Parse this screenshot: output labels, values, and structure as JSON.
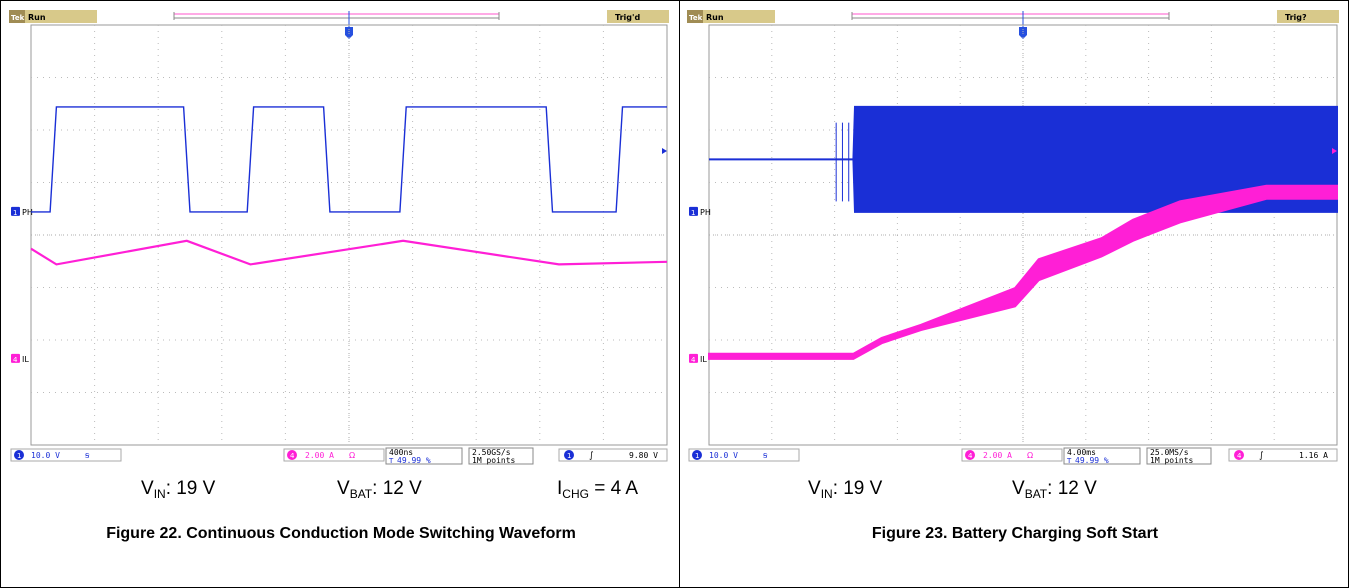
{
  "figures": [
    {
      "id": "fig22",
      "header": {
        "left": "Run",
        "right": "Trig'd"
      },
      "channels": [
        {
          "label": "PH",
          "color": "#1a2fd6"
        },
        {
          "label": "IL",
          "color": "#ff1fd6"
        }
      ],
      "status": {
        "ch1_scale": "10.0 V",
        "ch4_scale": "2.00 A",
        "ch4_suffix": "Ω",
        "timebase": "400ns",
        "trigger_pos": "49.99 %",
        "sample_rate": "2.50GS/s",
        "record_length": "1M points",
        "trigger_level": "9.80 V"
      },
      "conditions": {
        "vin": {
          "name": "V",
          "sub": "IN",
          "value": ": 19 V"
        },
        "vbat": {
          "name": "V",
          "sub": "BAT",
          "value": ": 12 V"
        },
        "ichg": {
          "name": "I",
          "sub": "CHG",
          "value": " = 4 A"
        }
      },
      "caption": "Figure 22. Continuous Conduction Mode Switching Waveform"
    },
    {
      "id": "fig23",
      "header": {
        "left": "Run",
        "right": "Trig?"
      },
      "channels": [
        {
          "label": "PH",
          "color": "#1a2fd6"
        },
        {
          "label": "IL",
          "color": "#ff1fd6"
        }
      ],
      "status": {
        "ch1_scale": "10.0 V",
        "ch4_scale": "2.00 A",
        "ch4_suffix": "Ω",
        "timebase": "4.00ms",
        "trigger_pos": "49.99 %",
        "sample_rate": "25.0MS/s",
        "record_length": "1M points",
        "trigger_level": "1.16 A"
      },
      "conditions": {
        "vin": {
          "name": "V",
          "sub": "IN",
          "value": ": 19 V"
        },
        "vbat": {
          "name": "V",
          "sub": "BAT",
          "value": ": 12 V"
        }
      },
      "caption": "Figure 23. Battery Charging Soft Start"
    }
  ],
  "chart_data": [
    {
      "type": "line",
      "title": "Figure 22. Continuous Conduction Mode Switching Waveform",
      "x_unit": "ns",
      "x_divisions": 10,
      "x_per_div": 400,
      "series": [
        {
          "name": "PH",
          "unit": "V",
          "x": [
            0,
            120,
            160,
            960,
            1000,
            1360,
            1400,
            1840,
            1880,
            2320,
            2360,
            3240,
            3280,
            3680,
            3720,
            4000
          ],
          "values": [
            0,
            0,
            20,
            20,
            0,
            0,
            20,
            20,
            0,
            0,
            20,
            20,
            0,
            0,
            20,
            20
          ]
        },
        {
          "name": "IL",
          "unit": "A",
          "x": [
            0,
            160,
            980,
            1380,
            2340,
            3320,
            4000
          ],
          "values": [
            4.2,
            3.6,
            4.5,
            3.6,
            4.5,
            3.6,
            3.7
          ]
        }
      ]
    },
    {
      "type": "area",
      "title": "Figure 23. Battery Charging Soft Start",
      "x_unit": "ms",
      "x_divisions": 10,
      "x_per_div": 4,
      "series": [
        {
          "name": "PH",
          "unit": "V",
          "note": "envelope",
          "x": [
            0,
            8.5,
            9.2,
            9.3,
            40
          ],
          "min": [
            10,
            10,
            10,
            0,
            0
          ],
          "max": [
            10,
            10,
            10,
            20,
            20
          ]
        },
        {
          "name": "IL",
          "unit": "A",
          "note": "envelope",
          "x": [
            0,
            9.2,
            11.0,
            13.5,
            19.5,
            21.0,
            25.0,
            27.0,
            30.0,
            35.5,
            40
          ],
          "min": [
            0,
            0,
            0.6,
            1.1,
            2.0,
            3.0,
            3.9,
            4.5,
            5.2,
            6.1,
            6.1
          ],
          "max": [
            0.2,
            0.2,
            0.8,
            1.3,
            2.7,
            3.8,
            4.6,
            5.3,
            6.0,
            6.6,
            6.6
          ]
        }
      ]
    }
  ]
}
